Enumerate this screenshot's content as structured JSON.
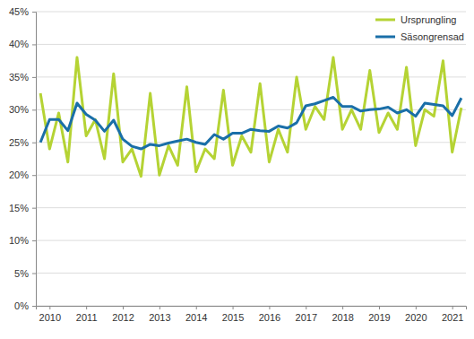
{
  "chart_data": {
    "type": "line",
    "categories": [
      null,
      "2010",
      null,
      null,
      null,
      "2011",
      null,
      null,
      null,
      "2012",
      null,
      null,
      null,
      "2013",
      null,
      null,
      null,
      "2014",
      null,
      null,
      null,
      "2015",
      null,
      null,
      null,
      "2016",
      null,
      null,
      null,
      "2017",
      null,
      null,
      null,
      "2018",
      null,
      null,
      null,
      "2019",
      null,
      null,
      null,
      "2020",
      null,
      null,
      null,
      "2021",
      null
    ],
    "series": [
      {
        "name": "Ursprungling",
        "color": "#b5d334",
        "values": [
          32.5,
          24,
          29.5,
          22,
          38,
          26,
          28.5,
          22.5,
          35.5,
          22,
          24,
          19.8,
          32.5,
          20,
          24.5,
          21.5,
          33.5,
          20.5,
          24,
          22.5,
          33,
          21.5,
          26,
          23.5,
          34,
          22,
          27,
          23.5,
          35,
          27,
          30.5,
          28.5,
          38,
          27,
          30,
          27,
          36,
          26.5,
          29.5,
          27,
          36.5,
          24.5,
          30,
          29,
          37.5,
          23.5,
          30.3
        ]
      },
      {
        "name": "Säsongrensad",
        "color": "#1a6fa8",
        "values": [
          25,
          28.5,
          28.5,
          26.8,
          31,
          29.3,
          28.4,
          26.7,
          28.4,
          25.5,
          24.4,
          24,
          24.7,
          24.5,
          24.9,
          25.2,
          25.5,
          25,
          24.7,
          26.2,
          25.5,
          26.4,
          26.4,
          27,
          26.8,
          26.7,
          27.5,
          27.2,
          28,
          30.6,
          30.9,
          31.4,
          31.9,
          30.5,
          30.5,
          29.8,
          30,
          30.1,
          30.4,
          29.5,
          30,
          29,
          31,
          30.8,
          30.6,
          29.1,
          31.8
        ]
      }
    ],
    "ylim": [
      0,
      45
    ],
    "yticks": [
      {
        "value": 0,
        "label": "0%"
      },
      {
        "value": 5,
        "label": "5%"
      },
      {
        "value": 10,
        "label": "10%"
      },
      {
        "value": 15,
        "label": "15%"
      },
      {
        "value": 20,
        "label": "20%"
      },
      {
        "value": 25,
        "label": "25%"
      },
      {
        "value": 30,
        "label": "30%"
      },
      {
        "value": 35,
        "label": "35%"
      },
      {
        "value": 40,
        "label": "40%"
      },
      {
        "value": 45,
        "label": "45%"
      }
    ],
    "grid": true,
    "legend": "top-right"
  }
}
